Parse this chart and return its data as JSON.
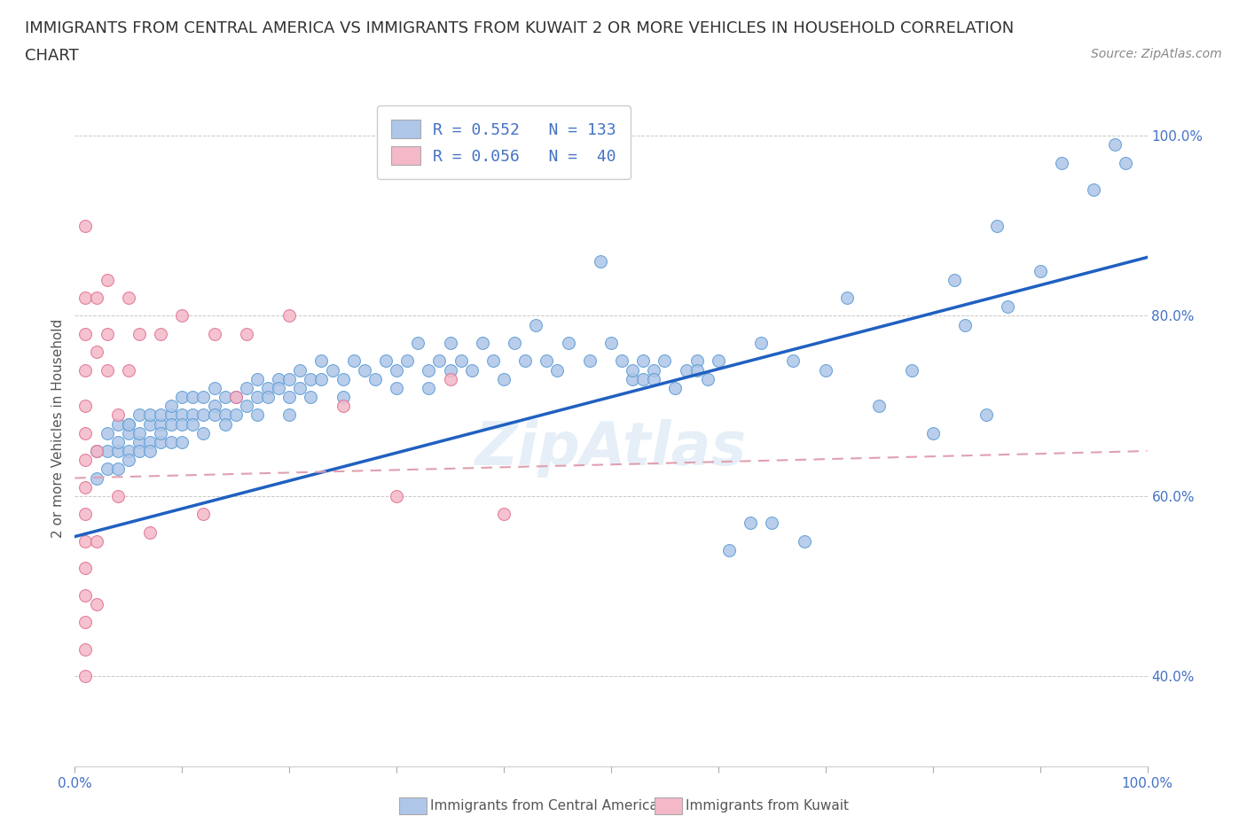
{
  "title_line1": "IMMIGRANTS FROM CENTRAL AMERICA VS IMMIGRANTS FROM KUWAIT 2 OR MORE VEHICLES IN HOUSEHOLD CORRELATION",
  "title_line2": "CHART",
  "source_text": "Source: ZipAtlas.com",
  "ylabel": "2 or more Vehicles in Household",
  "xlim": [
    0.0,
    1.0
  ],
  "ylim": [
    0.3,
    1.05
  ],
  "ytick_positions": [
    0.4,
    0.6,
    0.8,
    1.0
  ],
  "ytick_labels": [
    "40.0%",
    "60.0%",
    "80.0%",
    "100.0%"
  ],
  "xtick_labels": [
    "0.0%",
    "100.0%"
  ],
  "legend_entries": [
    {
      "label": "R = 0.552   N = 133",
      "color": "#aec6e8"
    },
    {
      "label": "R = 0.056   N =  40",
      "color": "#f4b8c8"
    }
  ],
  "bottom_legend": [
    "Immigrants from Central America",
    "Immigrants from Kuwait"
  ],
  "bottom_legend_colors": [
    "#aec6e8",
    "#f4b8c8"
  ],
  "watermark": "ZipAtlas",
  "scatter_central_america": [
    [
      0.02,
      0.62
    ],
    [
      0.02,
      0.65
    ],
    [
      0.03,
      0.67
    ],
    [
      0.03,
      0.63
    ],
    [
      0.03,
      0.65
    ],
    [
      0.04,
      0.65
    ],
    [
      0.04,
      0.68
    ],
    [
      0.04,
      0.66
    ],
    [
      0.04,
      0.63
    ],
    [
      0.05,
      0.68
    ],
    [
      0.05,
      0.65
    ],
    [
      0.05,
      0.67
    ],
    [
      0.05,
      0.64
    ],
    [
      0.05,
      0.68
    ],
    [
      0.06,
      0.69
    ],
    [
      0.06,
      0.66
    ],
    [
      0.06,
      0.65
    ],
    [
      0.06,
      0.67
    ],
    [
      0.07,
      0.66
    ],
    [
      0.07,
      0.68
    ],
    [
      0.07,
      0.69
    ],
    [
      0.07,
      0.65
    ],
    [
      0.08,
      0.68
    ],
    [
      0.08,
      0.66
    ],
    [
      0.08,
      0.69
    ],
    [
      0.08,
      0.67
    ],
    [
      0.09,
      0.69
    ],
    [
      0.09,
      0.68
    ],
    [
      0.09,
      0.66
    ],
    [
      0.09,
      0.7
    ],
    [
      0.1,
      0.69
    ],
    [
      0.1,
      0.71
    ],
    [
      0.1,
      0.68
    ],
    [
      0.1,
      0.66
    ],
    [
      0.11,
      0.69
    ],
    [
      0.11,
      0.71
    ],
    [
      0.11,
      0.68
    ],
    [
      0.12,
      0.71
    ],
    [
      0.12,
      0.69
    ],
    [
      0.12,
      0.67
    ],
    [
      0.13,
      0.7
    ],
    [
      0.13,
      0.69
    ],
    [
      0.13,
      0.72
    ],
    [
      0.14,
      0.71
    ],
    [
      0.14,
      0.69
    ],
    [
      0.14,
      0.68
    ],
    [
      0.15,
      0.71
    ],
    [
      0.15,
      0.69
    ],
    [
      0.16,
      0.72
    ],
    [
      0.16,
      0.7
    ],
    [
      0.17,
      0.73
    ],
    [
      0.17,
      0.71
    ],
    [
      0.17,
      0.69
    ],
    [
      0.18,
      0.72
    ],
    [
      0.18,
      0.71
    ],
    [
      0.19,
      0.73
    ],
    [
      0.19,
      0.72
    ],
    [
      0.2,
      0.73
    ],
    [
      0.2,
      0.71
    ],
    [
      0.2,
      0.69
    ],
    [
      0.21,
      0.74
    ],
    [
      0.21,
      0.72
    ],
    [
      0.22,
      0.73
    ],
    [
      0.22,
      0.71
    ],
    [
      0.23,
      0.75
    ],
    [
      0.23,
      0.73
    ],
    [
      0.24,
      0.74
    ],
    [
      0.25,
      0.73
    ],
    [
      0.25,
      0.71
    ],
    [
      0.26,
      0.75
    ],
    [
      0.27,
      0.74
    ],
    [
      0.28,
      0.73
    ],
    [
      0.29,
      0.75
    ],
    [
      0.3,
      0.74
    ],
    [
      0.3,
      0.72
    ],
    [
      0.31,
      0.75
    ],
    [
      0.32,
      0.77
    ],
    [
      0.33,
      0.74
    ],
    [
      0.33,
      0.72
    ],
    [
      0.34,
      0.75
    ],
    [
      0.35,
      0.74
    ],
    [
      0.35,
      0.77
    ],
    [
      0.36,
      0.75
    ],
    [
      0.37,
      0.74
    ],
    [
      0.38,
      0.77
    ],
    [
      0.39,
      0.75
    ],
    [
      0.4,
      0.73
    ],
    [
      0.41,
      0.77
    ],
    [
      0.42,
      0.75
    ],
    [
      0.43,
      0.79
    ],
    [
      0.44,
      0.75
    ],
    [
      0.45,
      0.74
    ],
    [
      0.46,
      0.77
    ],
    [
      0.48,
      0.75
    ],
    [
      0.49,
      0.86
    ],
    [
      0.5,
      0.77
    ],
    [
      0.51,
      0.75
    ],
    [
      0.52,
      0.73
    ],
    [
      0.52,
      0.74
    ],
    [
      0.53,
      0.75
    ],
    [
      0.53,
      0.73
    ],
    [
      0.54,
      0.74
    ],
    [
      0.54,
      0.73
    ],
    [
      0.55,
      0.75
    ],
    [
      0.56,
      0.72
    ],
    [
      0.57,
      0.74
    ],
    [
      0.58,
      0.75
    ],
    [
      0.58,
      0.74
    ],
    [
      0.59,
      0.73
    ],
    [
      0.6,
      0.75
    ],
    [
      0.61,
      0.54
    ],
    [
      0.63,
      0.57
    ],
    [
      0.64,
      0.77
    ],
    [
      0.65,
      0.57
    ],
    [
      0.67,
      0.75
    ],
    [
      0.68,
      0.55
    ],
    [
      0.7,
      0.74
    ],
    [
      0.72,
      0.82
    ],
    [
      0.75,
      0.7
    ],
    [
      0.78,
      0.74
    ],
    [
      0.8,
      0.67
    ],
    [
      0.82,
      0.84
    ],
    [
      0.83,
      0.79
    ],
    [
      0.85,
      0.69
    ],
    [
      0.86,
      0.9
    ],
    [
      0.87,
      0.81
    ],
    [
      0.9,
      0.85
    ],
    [
      0.92,
      0.97
    ],
    [
      0.95,
      0.94
    ],
    [
      0.97,
      0.99
    ],
    [
      0.98,
      0.97
    ]
  ],
  "scatter_kuwait": [
    [
      0.01,
      0.9
    ],
    [
      0.01,
      0.82
    ],
    [
      0.01,
      0.78
    ],
    [
      0.01,
      0.74
    ],
    [
      0.01,
      0.7
    ],
    [
      0.01,
      0.67
    ],
    [
      0.01,
      0.64
    ],
    [
      0.01,
      0.61
    ],
    [
      0.01,
      0.58
    ],
    [
      0.01,
      0.55
    ],
    [
      0.01,
      0.52
    ],
    [
      0.01,
      0.49
    ],
    [
      0.01,
      0.46
    ],
    [
      0.01,
      0.43
    ],
    [
      0.01,
      0.4
    ],
    [
      0.02,
      0.82
    ],
    [
      0.02,
      0.76
    ],
    [
      0.02,
      0.65
    ],
    [
      0.02,
      0.55
    ],
    [
      0.02,
      0.48
    ],
    [
      0.03,
      0.84
    ],
    [
      0.03,
      0.78
    ],
    [
      0.03,
      0.74
    ],
    [
      0.04,
      0.69
    ],
    [
      0.04,
      0.6
    ],
    [
      0.05,
      0.82
    ],
    [
      0.05,
      0.74
    ],
    [
      0.06,
      0.78
    ],
    [
      0.07,
      0.56
    ],
    [
      0.08,
      0.78
    ],
    [
      0.1,
      0.8
    ],
    [
      0.12,
      0.58
    ],
    [
      0.13,
      0.78
    ],
    [
      0.15,
      0.71
    ],
    [
      0.16,
      0.78
    ],
    [
      0.2,
      0.8
    ],
    [
      0.25,
      0.7
    ],
    [
      0.3,
      0.6
    ],
    [
      0.35,
      0.73
    ],
    [
      0.4,
      0.58
    ]
  ],
  "trendline_central": {
    "x_start": 0.0,
    "y_start": 0.555,
    "x_end": 1.0,
    "y_end": 0.865
  },
  "trendline_kuwait": {
    "x_start": 0.0,
    "y_start": 0.62,
    "x_end": 1.0,
    "y_end": 0.65
  },
  "marker_size": 100,
  "central_color": "#aec6e8",
  "central_edge_color": "#5b9bd5",
  "kuwait_color": "#f4b8c8",
  "kuwait_edge_color": "#e07090",
  "trendline_central_color": "#2060c0",
  "trendline_kuwait_color": "#e0a0b0",
  "background_color": "#ffffff",
  "title_fontsize": 13,
  "label_fontsize": 11,
  "tick_fontsize": 11,
  "watermark_fontsize": 48,
  "watermark_color": "#c8ddf0",
  "watermark_alpha": 0.45
}
